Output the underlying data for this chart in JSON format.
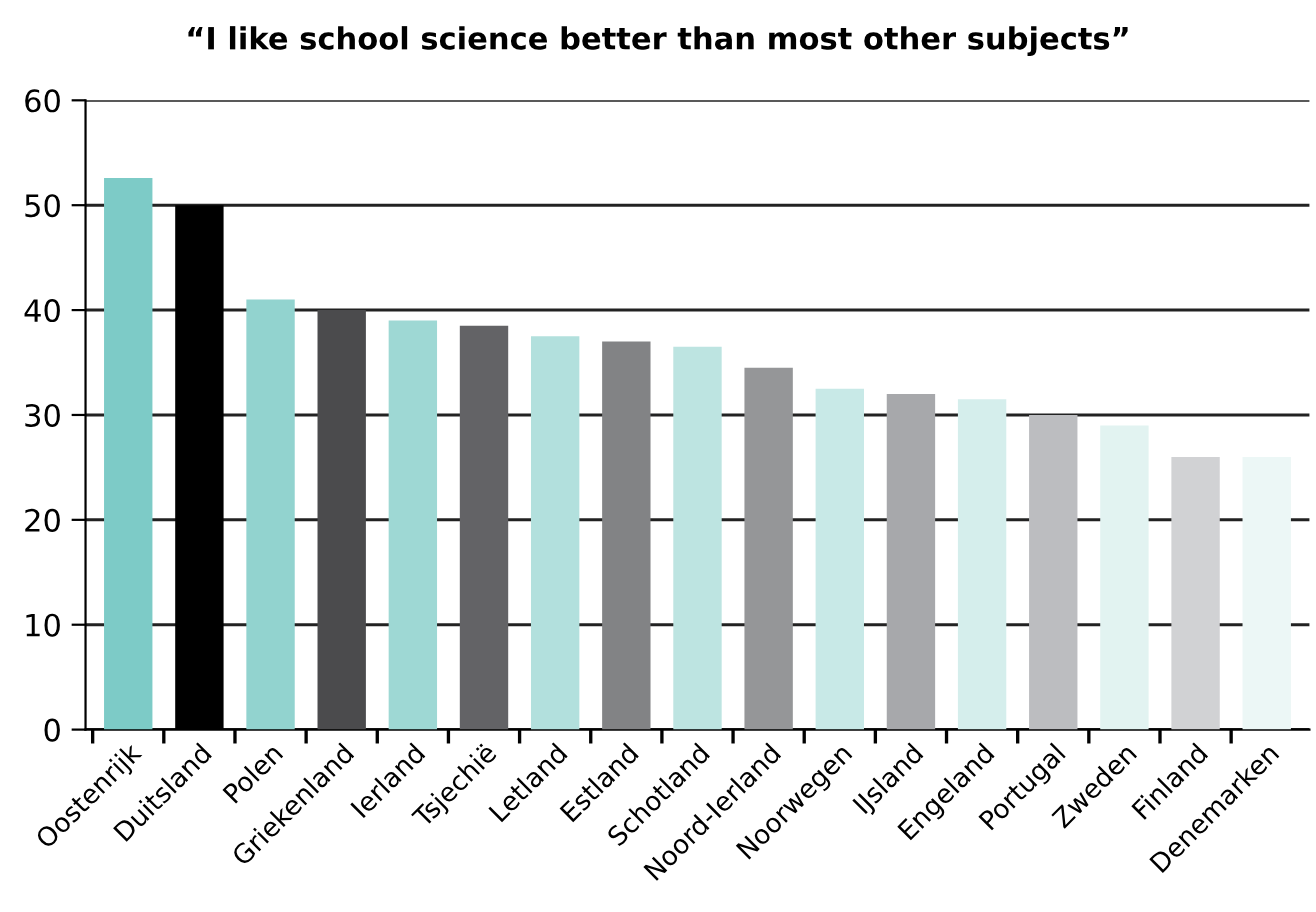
{
  "chart_data": {
    "type": "bar",
    "title": "“I like school science better than most other subjects”",
    "categories": [
      "Oostenrijk",
      "Duitsland",
      "Polen",
      "Griekenland",
      "Ierland",
      "Tsjechië",
      "Letland",
      "Estland",
      "Schotland",
      "Noord-Ierland",
      "Noorwegen",
      "IJsland",
      "Engeland",
      "Portugal",
      "Zweden",
      "Finland",
      "Denemarken"
    ],
    "values": [
      52.6,
      50,
      41,
      40,
      39,
      38.5,
      37.5,
      37,
      36.5,
      34.5,
      32.5,
      32,
      31.5,
      30,
      29,
      26,
      26
    ],
    "colors": [
      "#7dcbc7",
      "#000000",
      "#92d3cf",
      "#4b4b4d",
      "#9ed8d4",
      "#636366",
      "#b2e0dd",
      "#828385",
      "#bde4e1",
      "#959698",
      "#c8e9e7",
      "#a7a8ab",
      "#d5eeec",
      "#bcbdc0",
      "#e2f3f1",
      "#d1d2d4",
      "#ecf7f6"
    ],
    "ylim": [
      0,
      60
    ],
    "yticks": [
      0,
      10,
      20,
      30,
      40,
      50,
      60
    ],
    "grid": "y"
  }
}
